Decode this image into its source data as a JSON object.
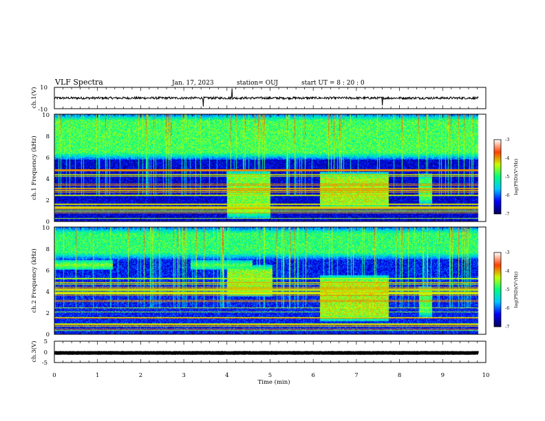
{
  "header": {
    "title": "VLF Spectra",
    "date": "Jan. 17, 2023",
    "station": "station= OUJ",
    "start": "start UT =  8 : 20 : 0"
  },
  "colors": {
    "background": "#ffffff",
    "axes": "#000000",
    "trace": "#000000",
    "colormap": [
      "#00005a",
      "#0000ff",
      "#00c8ff",
      "#00ff80",
      "#c8ff00",
      "#ff4000",
      "#ffffff"
    ]
  },
  "chart_data": [
    {
      "type": "line",
      "ylabel": "ch.1(V)",
      "ylim": [
        -10,
        10
      ],
      "yticks": [
        "10",
        "-10"
      ],
      "xlim": [
        0,
        10
      ],
      "baseline": 0,
      "spikes": [
        {
          "t": 3.45,
          "v": -8
        },
        {
          "t": 4.12,
          "v": 9
        },
        {
          "t": 7.6,
          "v": -7
        }
      ]
    },
    {
      "type": "heatmap",
      "ylabel": "ch.1 Frequency (kHz)",
      "ylim": [
        0,
        10
      ],
      "yticks": [
        "0",
        "2",
        "4",
        "6",
        "8",
        "10"
      ],
      "xlim": [
        0,
        10
      ],
      "data_end_min": 9.83,
      "colorbar": {
        "label": "log(PSD)(V²/Hz)",
        "range": [
          -7,
          -3
        ],
        "ticks": [
          "-3",
          "-4",
          "-5",
          "-6",
          "-7"
        ]
      },
      "features": [
        {
          "name": "noise floor",
          "f": [
            0,
            10
          ],
          "level": -6.5
        },
        {
          "name": "upper-band emission",
          "t": [
            0,
            9.83
          ],
          "f": [
            5.8,
            10
          ],
          "level": -4.8
        },
        {
          "name": "band burst",
          "t": [
            4.0,
            5.0
          ],
          "f": [
            0.3,
            4.8
          ],
          "level": -4.6
        },
        {
          "name": "band burst",
          "t": [
            6.15,
            7.75
          ],
          "f": [
            1.2,
            4.6
          ],
          "level": -4.4
        },
        {
          "name": "band burst",
          "t": [
            8.45,
            8.75
          ],
          "f": [
            1.5,
            4.5
          ],
          "level": -4.8
        }
      ]
    },
    {
      "type": "heatmap",
      "ylabel": "ch.2 Frequency (kHz)",
      "ylim": [
        0,
        10
      ],
      "yticks": [
        "0",
        "2",
        "4",
        "6",
        "8",
        "10"
      ],
      "xlim": [
        0,
        10
      ],
      "data_end_min": 9.83,
      "colorbar": {
        "label": "log(PSD)(V²/Hz)",
        "range": [
          -7,
          -3
        ],
        "ticks": [
          "-3",
          "-4",
          "-5",
          "-6",
          "-7"
        ]
      },
      "features": [
        {
          "name": "noise floor",
          "f": [
            0,
            10
          ],
          "level": -6.3
        },
        {
          "name": "upper-band emission",
          "t": [
            0,
            9.83
          ],
          "f": [
            7.0,
            10
          ],
          "level": -4.9
        },
        {
          "name": "6.5 kHz band",
          "t": [
            0,
            1.35
          ],
          "f": [
            6.0,
            6.9
          ],
          "level": -4.2
        },
        {
          "name": "6.5 kHz band",
          "t": [
            3.15,
            4.6
          ],
          "f": [
            6.0,
            6.9
          ],
          "level": -4.4
        },
        {
          "name": "band burst",
          "t": [
            4.0,
            5.05
          ],
          "f": [
            3.5,
            6.5
          ],
          "level": -4.5
        },
        {
          "name": "band burst",
          "t": [
            6.15,
            7.75
          ],
          "f": [
            1.2,
            5.5
          ],
          "level": -4.4
        },
        {
          "name": "band burst",
          "t": [
            8.45,
            8.75
          ],
          "f": [
            1.5,
            4.5
          ],
          "level": -4.8
        }
      ]
    },
    {
      "type": "line",
      "ylabel": "ch.3(V)",
      "ylim": [
        -5,
        5
      ],
      "yticks": [
        "5",
        "0",
        "-5"
      ],
      "xlim": [
        0,
        10
      ],
      "baseline": -0.5
    }
  ],
  "xaxis": {
    "label": "Time (min)",
    "range": [
      0,
      10
    ],
    "ticks": [
      "0",
      "1",
      "2",
      "3",
      "4",
      "5",
      "6",
      "7",
      "8",
      "9",
      "10"
    ]
  }
}
